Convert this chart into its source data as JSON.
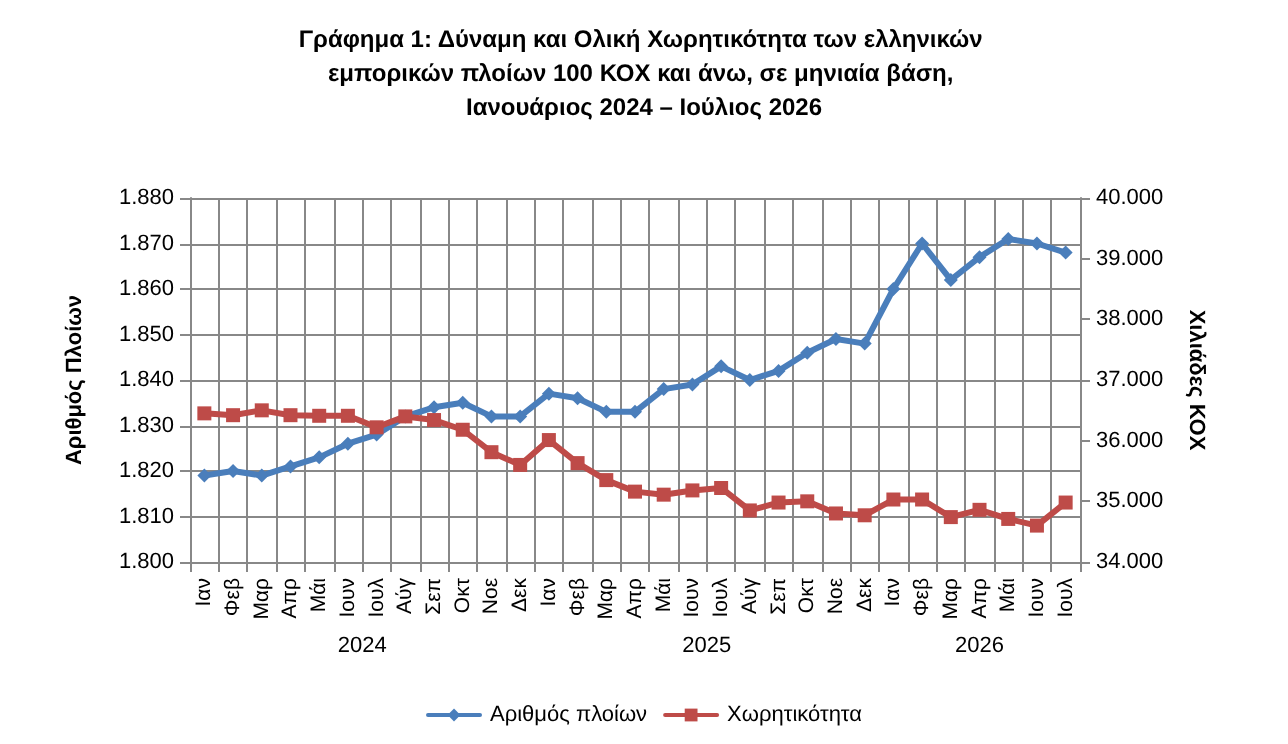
{
  "chart_data": {
    "type": "line",
    "title": "Γράφημα 1: Δύναμη και Ολική Χωρητικότητα των ελληνικών εμπορικών πλοίων 100 ΚΟΧ και άνω, σε μηνιαία βάση, Ιανουάριος 2024 – Ιούλιος 2026",
    "ylabel": "Αριθμός Πλοίων",
    "y2label": "Χιλιάδες ΚΟΧ",
    "categories": [
      "Ιαν",
      "Φεβ",
      "Μαρ",
      "Απρ",
      "Μάι",
      "Ιουν",
      "Ιουλ",
      "Αύγ",
      "Σεπ",
      "Οκτ",
      "Νοε",
      "Δεκ",
      "Ιαν",
      "Φεβ",
      "Μαρ",
      "Απρ",
      "Μάι",
      "Ιουν",
      "Ιουλ",
      "Αύγ",
      "Σεπ",
      "Οκτ",
      "Νοε",
      "Δεκ",
      "Ιαν",
      "Φεβ",
      "Μαρ",
      "Απρ",
      "Μάι",
      "Ιουν",
      "Ιουλ"
    ],
    "annotations": [
      "2024",
      "2025",
      "2026"
    ],
    "series": [
      {
        "name": "Αριθμός πλοίων",
        "color": "#4a7ebb",
        "marker": "diamond",
        "values": [
          1819,
          1820,
          1819,
          1821,
          1823,
          1826,
          1828,
          1832,
          1834,
          1835,
          1832,
          1832,
          1837,
          1836,
          1833,
          1833,
          1838,
          1839,
          1843,
          1840,
          1842,
          1846,
          1849,
          1848,
          1860,
          1870,
          1862,
          1867,
          1871,
          1870,
          1868
        ]
      },
      {
        "name": "Χωρητικότητα",
        "color": "#be4b48",
        "marker": "square",
        "axis": "y2",
        "values": [
          36450,
          36420,
          36500,
          36420,
          36410,
          36410,
          36220,
          36400,
          36340,
          36180,
          35810,
          35600,
          36010,
          35630,
          35350,
          35160,
          35110,
          35180,
          35220,
          34850,
          34980,
          35000,
          34800,
          34770,
          35030,
          35030,
          34740,
          34860,
          34710,
          34600,
          34980
        ]
      }
    ],
    "ylim": [
      1800,
      1880
    ],
    "yticks": [
      {
        "value": 1800,
        "label": "1.800"
      },
      {
        "value": 1810,
        "label": "1.810"
      },
      {
        "value": 1820,
        "label": "1.820"
      },
      {
        "value": 1830,
        "label": "1.830"
      },
      {
        "value": 1840,
        "label": "1.840"
      },
      {
        "value": 1850,
        "label": "1.850"
      },
      {
        "value": 1860,
        "label": "1.860"
      },
      {
        "value": 1870,
        "label": "1.870"
      },
      {
        "value": 1880,
        "label": "1.880"
      }
    ],
    "y2lim": [
      34000,
      40000
    ],
    "y2ticks": [
      {
        "value": 34000,
        "label": "34.000"
      },
      {
        "value": 35000,
        "label": "35.000"
      },
      {
        "value": 36000,
        "label": "36.000"
      },
      {
        "value": 37000,
        "label": "37.000"
      },
      {
        "value": 38000,
        "label": "38.000"
      },
      {
        "value": 39000,
        "label": "39.000"
      },
      {
        "value": 40000,
        "label": "40.000"
      }
    ],
    "grid": true,
    "legend": "bottom",
    "line_style": "solid"
  }
}
